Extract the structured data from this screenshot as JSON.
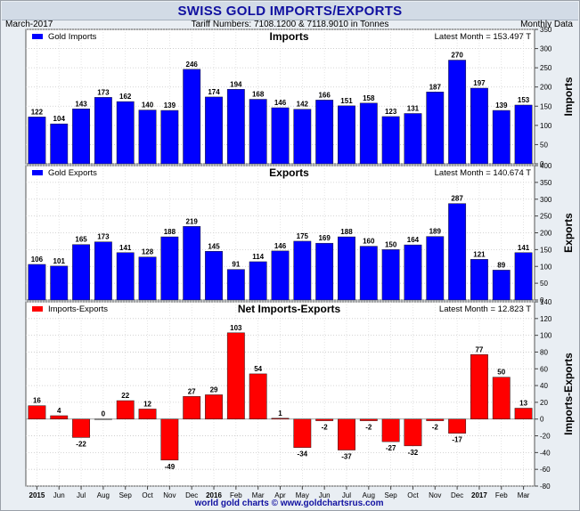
{
  "header": {
    "title": "SWISS GOLD IMPORTS/EXPORTS",
    "date": "March-2017",
    "tariff": "Tariff Numbers: 7108.1200 & 7118.9010 in Tonnes",
    "frequency": "Monthly Data"
  },
  "footer": {
    "credit": "world gold charts © www.goldchartsrus.com"
  },
  "colors": {
    "bar_positive": "#0000ff",
    "bar_net": "#ff0000",
    "background": "#ffffff"
  },
  "chart_data": [
    {
      "type": "bar",
      "title": "Imports",
      "ylabel": "Imports",
      "legend": "Gold Imports",
      "latest": "Latest Month = 153.497 T",
      "legend_position": "top-left",
      "grid": true,
      "ylim": [
        0,
        350
      ],
      "yticks": [
        0,
        50,
        100,
        150,
        200,
        250,
        300,
        350
      ],
      "values": [
        122,
        104,
        143,
        173,
        162,
        140,
        139,
        246,
        174,
        194,
        168,
        146,
        142,
        166,
        151,
        158,
        123,
        131,
        187,
        270,
        197,
        139,
        153
      ]
    },
    {
      "type": "bar",
      "title": "Exports",
      "ylabel": "Exports",
      "legend": "Gold Exports",
      "latest": "Latest Month = 140.674 T",
      "legend_position": "top-left",
      "grid": true,
      "ylim": [
        0,
        400
      ],
      "yticks": [
        0,
        50,
        100,
        150,
        200,
        250,
        300,
        350,
        400
      ],
      "values": [
        106,
        101,
        165,
        173,
        141,
        128,
        188,
        219,
        145,
        91,
        114,
        146,
        175,
        169,
        188,
        160,
        150,
        164,
        189,
        287,
        121,
        89,
        141
      ]
    },
    {
      "type": "bar",
      "title": "Net Imports-Exports",
      "ylabel": "Imports-Exports",
      "legend": "Imports-Exports",
      "latest": "Latest Month = 12.823 T",
      "legend_position": "top-left",
      "grid": true,
      "ylim": [
        -80,
        140
      ],
      "yticks": [
        -80,
        -60,
        -40,
        -20,
        0,
        20,
        40,
        60,
        80,
        100,
        120,
        140
      ],
      "values": [
        16,
        4,
        -22,
        0,
        22,
        12,
        -49,
        27,
        29,
        103,
        54,
        1,
        -34,
        -2,
        -37,
        -2,
        -27,
        -32,
        -2,
        -17,
        77,
        50,
        13
      ]
    }
  ],
  "x_axis": {
    "categories": [
      "2015",
      "Jun",
      "Jul",
      "Aug",
      "Sep",
      "Oct",
      "Nov",
      "Dec",
      "2016",
      "Feb",
      "Mar",
      "Apr",
      "May",
      "Jun",
      "Jul",
      "Aug",
      "Sep",
      "Oct",
      "Nov",
      "Dec",
      "2017",
      "Feb",
      "Mar"
    ],
    "bold": [
      "2015",
      "2016",
      "2017"
    ]
  }
}
